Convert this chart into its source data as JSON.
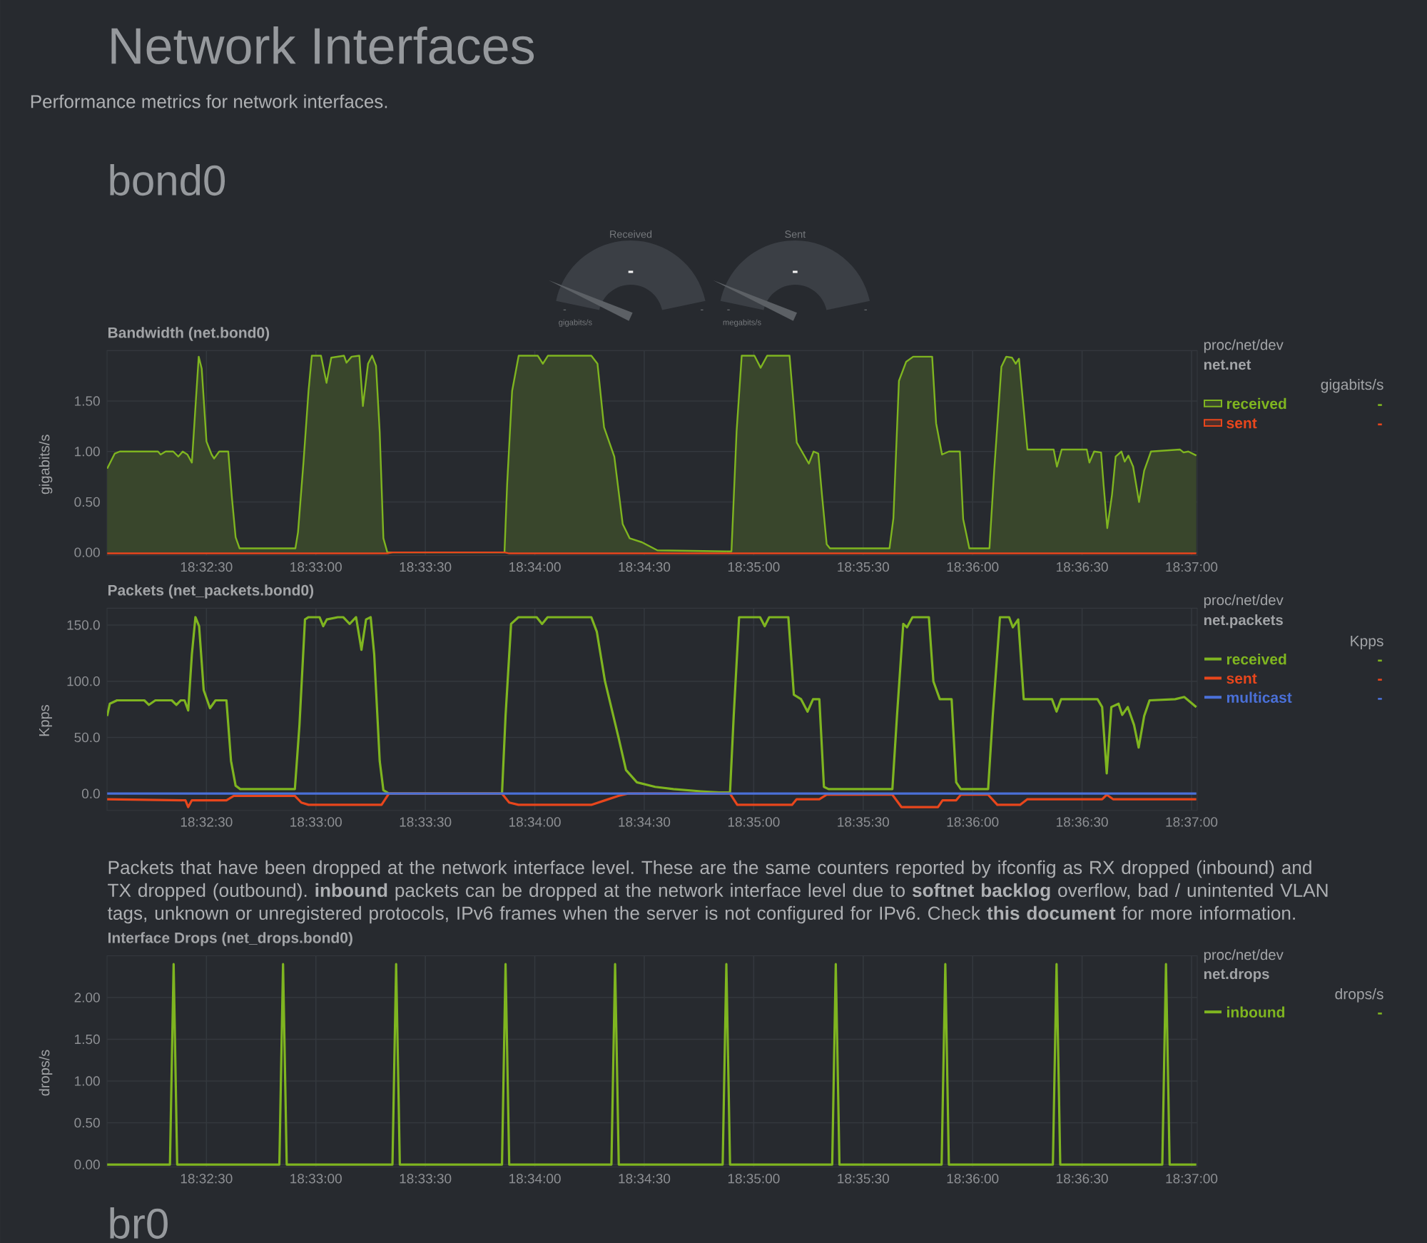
{
  "chart_data": [
    {
      "type": "other",
      "title": "Network Interfaces",
      "subtitle": "Performance metrics for network interfaces.",
      "annotations": [
        "bond0"
      ]
    },
    {
      "type": "other",
      "title": "Received",
      "annotations": [
        "-",
        "-",
        "-",
        "gigabits/s"
      ]
    },
    {
      "type": "other",
      "title": "Sent",
      "annotations": [
        "-",
        "-",
        "-",
        "megabits/s"
      ]
    },
    {
      "type": "area",
      "title": "Bandwidth (net.bond0)",
      "ylabel": "gigabits/s",
      "legend_title": "gigabits/s",
      "annotations": [
        "proc/net/dev",
        "net.net",
        "-",
        "-"
      ],
      "x": [
        18.53411,
        18.53469,
        18.53507,
        18.53798,
        18.53818,
        18.53856,
        18.53914,
        18.53953,
        18.53986,
        18.54022,
        18.54056,
        18.54086,
        18.54108,
        18.54131,
        18.54167,
        18.54206,
        18.54225,
        18.54264,
        18.54333,
        18.54361,
        18.54389,
        18.54419,
        18.54844,
        18.54864,
        18.54906,
        18.54944,
        18.54969,
        18.55039,
        18.55081,
        18.55117,
        18.55214,
        18.55233,
        18.55272,
        18.55331,
        18.55358,
        18.55397,
        18.55428,
        18.55458,
        18.55486,
        18.55514,
        18.55544,
        18.56436,
        18.56456,
        18.56494,
        18.56544,
        18.56689,
        18.56728,
        18.56767,
        18.57097,
        18.57144,
        18.57194,
        18.57272,
        18.57336,
        18.57389,
        18.57483,
        18.576,
        18.58136,
        18.58164,
        18.58203,
        18.58242,
        18.58339,
        18.58386,
        18.58436,
        18.58606,
        18.58661,
        18.58753,
        18.58789,
        18.58825,
        18.58853,
        18.58889,
        18.58914,
        18.59367,
        18.59397,
        18.59439,
        18.59494,
        18.59547,
        18.59692,
        18.59722,
        18.59767,
        18.59819,
        18.59903,
        18.59928,
        18.59975,
        18.60128,
        18.60164,
        18.60219,
        18.60256,
        18.603,
        18.60328,
        18.60353,
        18.60417,
        18.60617,
        18.60642,
        18.60678,
        18.60869,
        18.60889,
        18.60925,
        18.60978,
        18.60997,
        18.61025,
        18.61061,
        18.61089,
        18.61133,
        18.61158,
        18.61186,
        18.61222,
        18.61267,
        18.61306,
        18.61358,
        18.61578,
        18.61606,
        18.61642,
        18.61703
      ],
      "series": [
        {
          "name": "received",
          "color": "#7fb520",
          "values": [
            0.83,
            0.98,
            1.0,
            1.0,
            0.97,
            1.0,
            1.0,
            0.95,
            1.0,
            0.97,
            0.89,
            1.5,
            1.94,
            1.82,
            1.1,
            0.97,
            0.93,
            1.0,
            1.0,
            0.54,
            0.15,
            0.04,
            0.04,
            0.2,
            0.9,
            1.6,
            1.95,
            1.95,
            1.68,
            1.93,
            1.95,
            1.88,
            1.94,
            1.95,
            1.45,
            1.87,
            1.95,
            1.85,
            1.19,
            0.14,
            0.0,
            0.0,
            0.67,
            1.6,
            1.95,
            1.95,
            1.87,
            1.95,
            1.95,
            1.87,
            1.24,
            0.95,
            0.28,
            0.14,
            0.1,
            0.02,
            0.01,
            0.01,
            1.2,
            1.95,
            1.95,
            1.83,
            1.95,
            1.95,
            1.09,
            0.88,
            1.0,
            0.98,
            0.57,
            0.08,
            0.04,
            0.04,
            0.34,
            1.7,
            1.89,
            1.94,
            1.94,
            1.28,
            0.97,
            1.0,
            1.0,
            0.33,
            0.04,
            0.04,
            0.81,
            1.84,
            1.94,
            1.93,
            1.87,
            1.92,
            1.02,
            1.02,
            0.85,
            1.02,
            1.02,
            0.89,
            1.0,
            0.99,
            0.67,
            0.24,
            0.57,
            0.95,
            1.0,
            0.9,
            0.96,
            0.85,
            0.5,
            0.81,
            1.0,
            1.02,
            0.99,
            1.0,
            0.96
          ]
        },
        {
          "name": "sent",
          "type": "line",
          "color": "#e8461c",
          "x": [
            18.53411,
            18.55544,
            18.55583,
            18.56436,
            18.56472,
            18.61703
          ],
          "values": [
            -0.01,
            -0.01,
            0,
            0,
            -0.01,
            -0.01
          ]
        }
      ],
      "xlim": [
        18.5341,
        18.6171
      ],
      "ylim": [
        -0.03,
        2.0
      ],
      "xticks": [
        {
          "value": 18.541667,
          "label": "18:32:30"
        },
        {
          "value": 18.55,
          "label": "18:33:00"
        },
        {
          "value": 18.558333,
          "label": "18:33:30"
        },
        {
          "value": 18.566667,
          "label": "18:34:00"
        },
        {
          "value": 18.575,
          "label": "18:34:30"
        },
        {
          "value": 18.583333,
          "label": "18:35:00"
        },
        {
          "value": 18.591667,
          "label": "18:35:30"
        },
        {
          "value": 18.6,
          "label": "18:36:00"
        },
        {
          "value": 18.608333,
          "label": "18:36:30"
        },
        {
          "value": 18.616667,
          "label": "18:37:00"
        }
      ],
      "yticks": [
        {
          "value": 0,
          "label": "0.00"
        },
        {
          "value": 0.5,
          "label": "0.50"
        },
        {
          "value": 1,
          "label": "1.00"
        },
        {
          "value": 1.5,
          "label": "1.50"
        }
      ],
      "grid": true,
      "legend": "right"
    },
    {
      "type": "line",
      "title": "Packets (net_packets.bond0)",
      "ylabel": "Kpps",
      "legend_title": "Kpps",
      "annotations": [
        "proc/net/dev",
        "net.packets",
        "-",
        "-",
        "-"
      ],
      "x": [
        18.53411,
        18.53431,
        18.53486,
        18.53694,
        18.53729,
        18.53778,
        18.53903,
        18.53938,
        18.53972,
        18.54,
        18.54028,
        18.54056,
        18.54083,
        18.54111,
        18.54146,
        18.54194,
        18.54236,
        18.54319,
        18.54354,
        18.54389,
        18.54424,
        18.5484,
        18.54875,
        18.54917,
        18.54944,
        18.55028,
        18.55056,
        18.55083,
        18.55167,
        18.55208,
        18.55257,
        18.55306,
        18.55347,
        18.55382,
        18.55417,
        18.55444,
        18.55486,
        18.55514,
        18.55556,
        18.56417,
        18.56444,
        18.56486,
        18.56542,
        18.56681,
        18.56722,
        18.56764,
        18.57097,
        18.57139,
        18.57201,
        18.57306,
        18.57361,
        18.57444,
        18.57583,
        18.57722,
        18.57931,
        18.58069,
        18.58153,
        18.58181,
        18.58222,
        18.58382,
        18.58417,
        18.58451,
        18.58597,
        18.58639,
        18.58694,
        18.58743,
        18.58785,
        18.58833,
        18.58868,
        18.58903,
        18.59389,
        18.59424,
        18.59472,
        18.595,
        18.59542,
        18.59667,
        18.59701,
        18.5975,
        18.5984,
        18.59875,
        18.5991,
        18.60118,
        18.60153,
        18.60208,
        18.60278,
        18.60306,
        18.60347,
        18.60389,
        18.60604,
        18.60639,
        18.60674,
        18.60951,
        18.60986,
        18.61021,
        18.61056,
        18.61111,
        18.61139,
        18.61181,
        18.61229,
        18.61264,
        18.61306,
        18.61347,
        18.61542,
        18.61611,
        18.61703
      ],
      "series": [
        {
          "name": "received",
          "color": "#7fb520",
          "values": [
            69,
            80,
            83,
            83,
            79,
            83,
            83,
            79,
            83,
            83,
            74,
            124,
            157,
            149,
            92,
            76,
            83,
            83,
            29,
            7,
            4,
            4,
            61,
            155,
            157,
            157,
            149,
            155,
            157,
            157,
            151,
            157,
            128,
            155,
            157,
            124,
            29,
            3,
            0,
            0,
            69,
            151,
            157,
            157,
            151,
            157,
            157,
            144,
            100,
            49,
            21,
            10,
            6,
            4,
            2,
            1,
            1,
            69,
            157,
            157,
            149,
            157,
            157,
            88,
            84,
            73,
            84,
            84,
            6,
            4,
            4,
            69,
            151,
            148,
            157,
            157,
            100,
            84,
            84,
            10,
            4,
            4,
            69,
            157,
            157,
            148,
            155,
            84,
            84,
            73,
            84,
            84,
            77,
            18,
            77,
            80,
            70,
            77,
            61,
            41,
            69,
            83,
            84,
            86,
            77
          ]
        },
        {
          "name": "sent",
          "color": "#e8461c",
          "x": [
            18.53411,
            18.54007,
            18.54028,
            18.54056,
            18.54319,
            18.54375,
            18.5484,
            18.54889,
            18.54944,
            18.555,
            18.55556,
            18.56417,
            18.56472,
            18.56542,
            18.57097,
            18.57201,
            18.57306,
            18.57375,
            18.58153,
            18.58208,
            18.58625,
            18.5866,
            18.58833,
            18.58889,
            18.59389,
            18.59458,
            18.59736,
            18.59771,
            18.59875,
            18.5991,
            18.60118,
            18.60188,
            18.60361,
            18.60417,
            18.60986,
            18.61021,
            18.61069,
            18.61703
          ],
          "values": [
            -5,
            -6,
            -12,
            -6,
            -6,
            -2,
            -2,
            -8,
            -10,
            -10,
            0,
            0,
            -8,
            -10,
            -10,
            -6,
            -2,
            0,
            0,
            -10,
            -10,
            -5,
            -5,
            -1,
            -1,
            -12,
            -12,
            -6,
            -6,
            -1,
            -1,
            -10,
            -10,
            -5,
            -5,
            -1,
            -5,
            -5
          ]
        },
        {
          "name": "multicast",
          "color": "#4a70d8",
          "x": [
            18.53411,
            18.61703
          ],
          "values": [
            0,
            0
          ]
        }
      ],
      "xlim": [
        18.5341,
        18.6171
      ],
      "ylim": [
        -15,
        165
      ],
      "xticks": [
        {
          "value": 18.541667,
          "label": "18:32:30"
        },
        {
          "value": 18.55,
          "label": "18:33:00"
        },
        {
          "value": 18.558333,
          "label": "18:33:30"
        },
        {
          "value": 18.566667,
          "label": "18:34:00"
        },
        {
          "value": 18.575,
          "label": "18:34:30"
        },
        {
          "value": 18.583333,
          "label": "18:35:00"
        },
        {
          "value": 18.591667,
          "label": "18:35:30"
        },
        {
          "value": 18.6,
          "label": "18:36:00"
        },
        {
          "value": 18.608333,
          "label": "18:36:30"
        },
        {
          "value": 18.616667,
          "label": "18:37:00"
        }
      ],
      "yticks": [
        {
          "value": 0,
          "label": "0.0"
        },
        {
          "value": 50,
          "label": "50.0"
        },
        {
          "value": 100,
          "label": "100.0"
        },
        {
          "value": 150,
          "label": "150.0"
        }
      ],
      "grid": true,
      "legend": "right"
    },
    {
      "type": "line",
      "title": "Interface Drops (net_drops.bond0)",
      "subtitle": "Packets that have been dropped at the network interface level. These are the same counters reported by ifconfig as RX dropped (inbound) and TX dropped (outbound). **inbound** packets can be dropped at the network interface level due to **softnet backlog** overflow, bad / unintented VLAN tags, unknown or unregistered protocols, IPv6 frames when the server is not configured for IPv6. Check **this document** for more information.",
      "ylabel": "drops/s",
      "legend_title": "drops/s",
      "annotations": [
        "proc/net/dev",
        "net.drops",
        "-"
      ],
      "x": [
        18.53411,
        18.53889,
        18.53917,
        18.53944,
        18.54722,
        18.5475,
        18.54778,
        18.55583,
        18.55611,
        18.55639,
        18.56417,
        18.56444,
        18.56472,
        18.5725,
        18.57278,
        18.57306,
        18.58097,
        18.58125,
        18.58153,
        18.58931,
        18.58958,
        18.58986,
        18.59764,
        18.59792,
        18.59819,
        18.60611,
        18.60639,
        18.60667,
        18.61444,
        18.61472,
        18.615,
        18.61703
      ],
      "series": [
        {
          "name": "inbound",
          "color": "#7fb520",
          "values": [
            0,
            0,
            2.4,
            0,
            0,
            2.4,
            0,
            0,
            2.4,
            0,
            0,
            2.4,
            0,
            0,
            2.4,
            0,
            0,
            2.4,
            0,
            0,
            2.4,
            0,
            0,
            2.4,
            0,
            0,
            2.4,
            0,
            0,
            2.4,
            0,
            0
          ]
        }
      ],
      "xlim": [
        18.5341,
        18.6171
      ],
      "ylim": [
        -0.03,
        2.5
      ],
      "xticks": [
        {
          "value": 18.541667,
          "label": "18:32:30"
        },
        {
          "value": 18.55,
          "label": "18:33:00"
        },
        {
          "value": 18.558333,
          "label": "18:33:30"
        },
        {
          "value": 18.566667,
          "label": "18:34:00"
        },
        {
          "value": 18.575,
          "label": "18:34:30"
        },
        {
          "value": 18.583333,
          "label": "18:35:00"
        },
        {
          "value": 18.591667,
          "label": "18:35:30"
        },
        {
          "value": 18.6,
          "label": "18:36:00"
        },
        {
          "value": 18.608333,
          "label": "18:36:30"
        },
        {
          "value": 18.616667,
          "label": "18:37:00"
        }
      ],
      "yticks": [
        {
          "value": 0,
          "label": "0.00"
        },
        {
          "value": 0.5,
          "label": "0.50"
        },
        {
          "value": 1,
          "label": "1.00"
        },
        {
          "value": 1.5,
          "label": "1.50"
        },
        {
          "value": 2,
          "label": "2.00"
        }
      ],
      "grid": true,
      "legend": "right"
    },
    {
      "type": "other",
      "title": "br0"
    }
  ]
}
